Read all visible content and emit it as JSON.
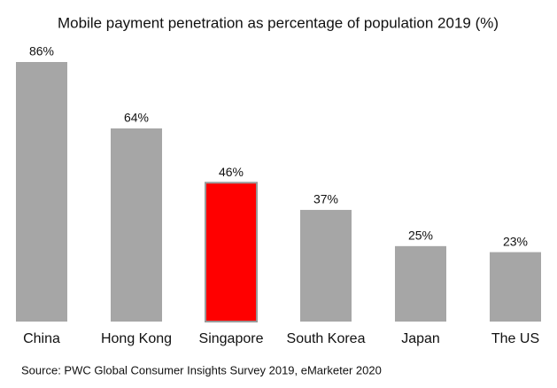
{
  "chart_data": {
    "type": "bar",
    "title": "Mobile payment penetration as percentage of population 2019 (%)",
    "categories": [
      "China",
      "Hong Kong",
      "Singapore",
      "South Korea",
      "Japan",
      "The US"
    ],
    "values": [
      86,
      64,
      46,
      37,
      25,
      23
    ],
    "value_labels": [
      "86%",
      "64%",
      "46%",
      "37%",
      "25%",
      "23%"
    ],
    "colors": [
      "#a6a6a6",
      "#a6a6a6",
      "#ff0000",
      "#a6a6a6",
      "#a6a6a6",
      "#a6a6a6"
    ],
    "source": "Source: PWC Global Consumer Insights Survey 2019, eMarketer 2020"
  }
}
